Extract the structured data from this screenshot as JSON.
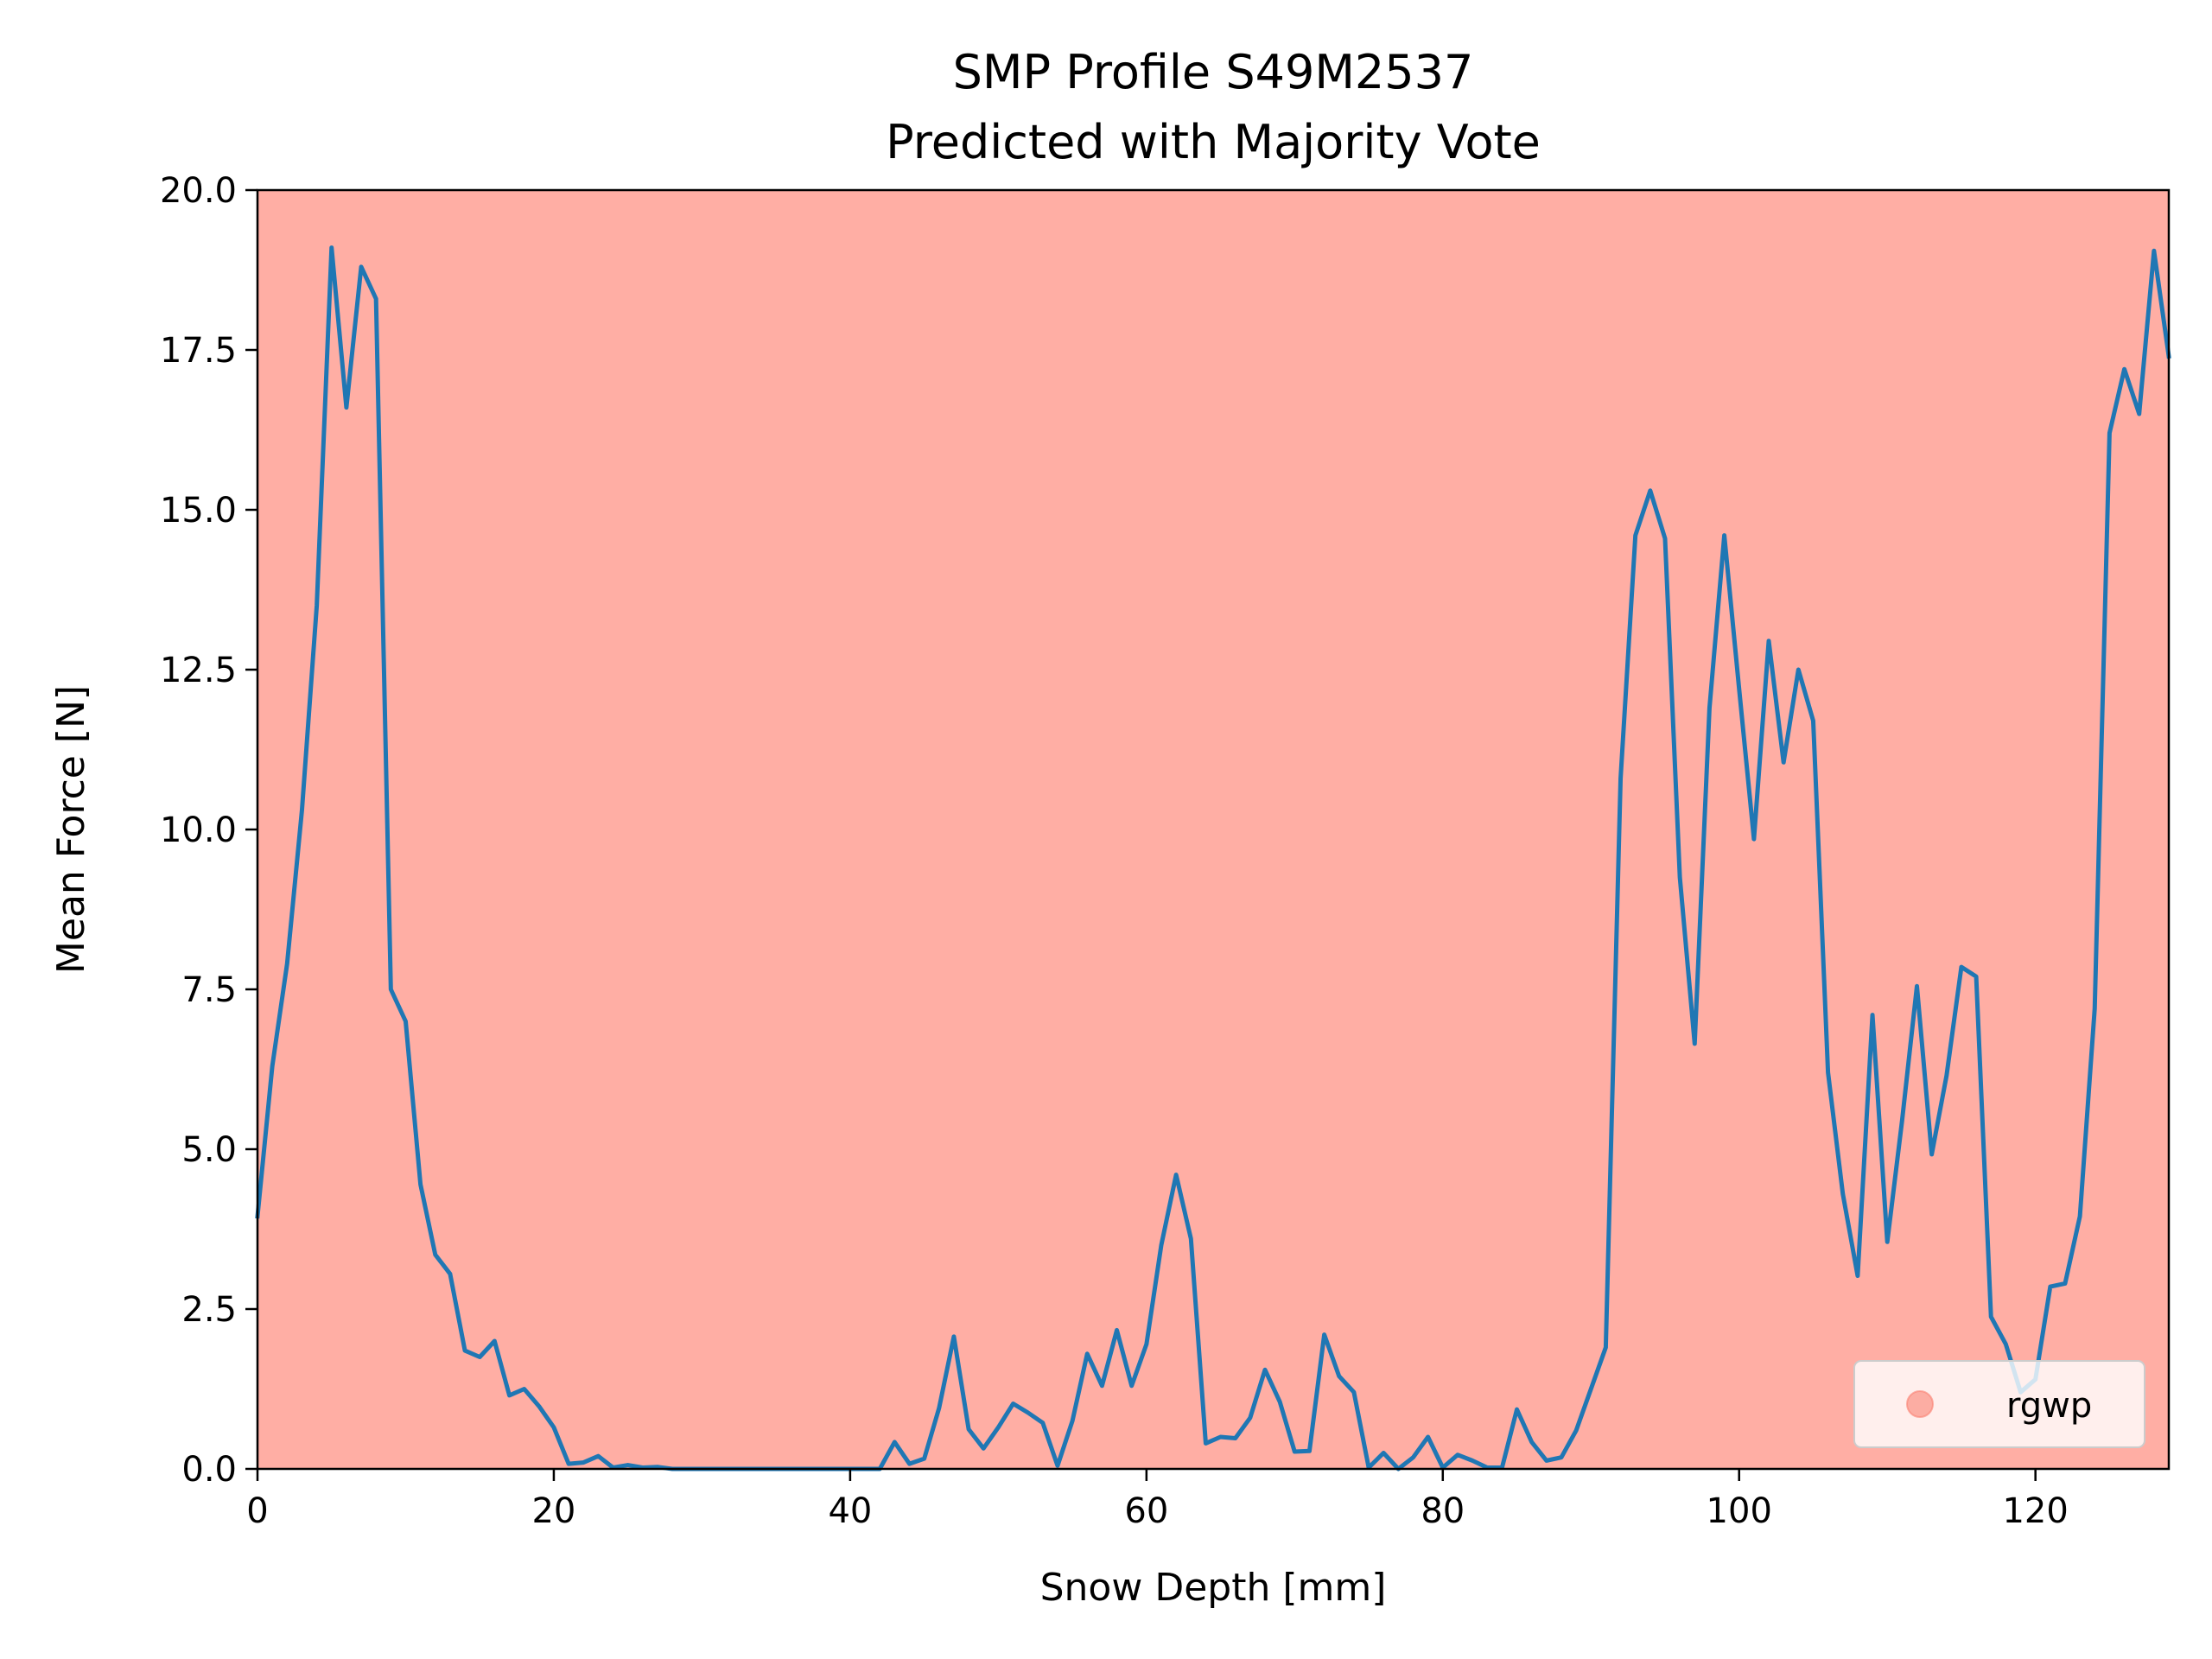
{
  "chart_data": {
    "type": "line",
    "title": "SMP Profile S49M2537",
    "subtitle": "Predicted with Majority Vote",
    "xlabel": "Snow Depth [mm]",
    "ylabel": "Mean Force [N]",
    "xlim": [
      0,
      129
    ],
    "ylim": [
      0,
      20
    ],
    "x_ticks": [
      0,
      20,
      40,
      60,
      80,
      100,
      120
    ],
    "x_tick_labels": [
      "0",
      "20",
      "40",
      "60",
      "80",
      "100",
      "120"
    ],
    "y_ticks": [
      0,
      2.5,
      5,
      7.5,
      10,
      12.5,
      15,
      17.5,
      20
    ],
    "y_tick_labels": [
      "0.0",
      "2.5",
      "5.0",
      "7.5",
      "10.0",
      "12.5",
      "15.0",
      "17.5",
      "20.0"
    ],
    "grid": false,
    "legend_position": "lower-right",
    "background_regions": [
      {
        "label": "rgwp",
        "from": 0,
        "to": 129,
        "color": "#ffaea4"
      }
    ],
    "legend": [
      {
        "label": "rgwp",
        "marker": "circle",
        "color": "#fa8072"
      }
    ],
    "series": [
      {
        "color": "#1f77b4",
        "x": [
          0,
          1,
          2,
          3,
          4,
          5,
          6,
          7,
          8,
          9,
          10,
          11,
          12,
          13,
          14,
          15,
          16,
          17,
          18,
          19,
          20,
          21,
          22,
          23,
          24,
          25,
          26,
          27,
          28,
          29,
          30,
          31,
          32,
          33,
          34,
          35,
          36,
          37,
          38,
          39,
          40,
          41,
          42,
          43,
          44,
          45,
          46,
          47,
          48,
          49,
          50,
          51,
          52,
          53,
          54,
          55,
          56,
          57,
          58,
          59,
          60,
          61,
          62,
          63,
          64,
          65,
          66,
          67,
          68,
          69,
          70,
          71,
          72,
          73,
          74,
          75,
          76,
          77,
          78,
          79,
          80,
          81,
          82,
          83,
          84,
          85,
          86,
          87,
          88,
          89,
          90,
          91,
          92,
          93,
          94,
          95,
          96,
          97,
          98,
          99,
          100,
          101,
          102,
          103,
          104,
          105,
          106,
          107,
          108,
          109,
          110,
          111,
          112,
          113,
          114,
          115,
          116,
          117,
          118,
          119,
          120,
          121,
          122,
          123,
          124,
          125,
          126,
          127,
          128,
          129
        ],
        "values": [
          3.95,
          6.3,
          7.9,
          10.3,
          13.5,
          19.1,
          16.6,
          18.8,
          18.3,
          7.5,
          7.0,
          4.45,
          3.35,
          3.05,
          1.85,
          1.75,
          2.0,
          1.15,
          1.25,
          0.98,
          0.65,
          0.08,
          0.1,
          0.2,
          0.02,
          0.06,
          0.02,
          0.03,
          0.0,
          0.0,
          0.0,
          0.0,
          0.0,
          0.0,
          0.0,
          0.0,
          0.0,
          0.0,
          0.0,
          0.0,
          0.0,
          0.0,
          0.0,
          0.42,
          0.08,
          0.16,
          0.95,
          2.07,
          0.62,
          0.32,
          0.65,
          1.02,
          0.88,
          0.72,
          0.05,
          0.75,
          1.8,
          1.3,
          2.17,
          1.3,
          1.95,
          3.5,
          4.6,
          3.6,
          0.4,
          0.5,
          0.48,
          0.8,
          1.55,
          1.05,
          0.27,
          0.28,
          2.1,
          1.45,
          1.2,
          0.02,
          0.25,
          0.0,
          0.18,
          0.5,
          0.02,
          0.22,
          0.13,
          0.02,
          0.02,
          0.93,
          0.42,
          0.13,
          0.18,
          0.6,
          1.25,
          1.9,
          10.8,
          14.6,
          15.3,
          14.55,
          9.25,
          6.65,
          11.9,
          14.6,
          12.2,
          9.85,
          12.95,
          11.05,
          12.5,
          11.7,
          6.2,
          4.3,
          3.02,
          7.1,
          3.55,
          5.45,
          7.55,
          4.92,
          6.15,
          7.85,
          7.7,
          2.38,
          1.95,
          1.2,
          1.4,
          2.85,
          2.9,
          3.95,
          7.2,
          16.2,
          17.2,
          16.5,
          19.05,
          17.4
        ]
      }
    ]
  }
}
